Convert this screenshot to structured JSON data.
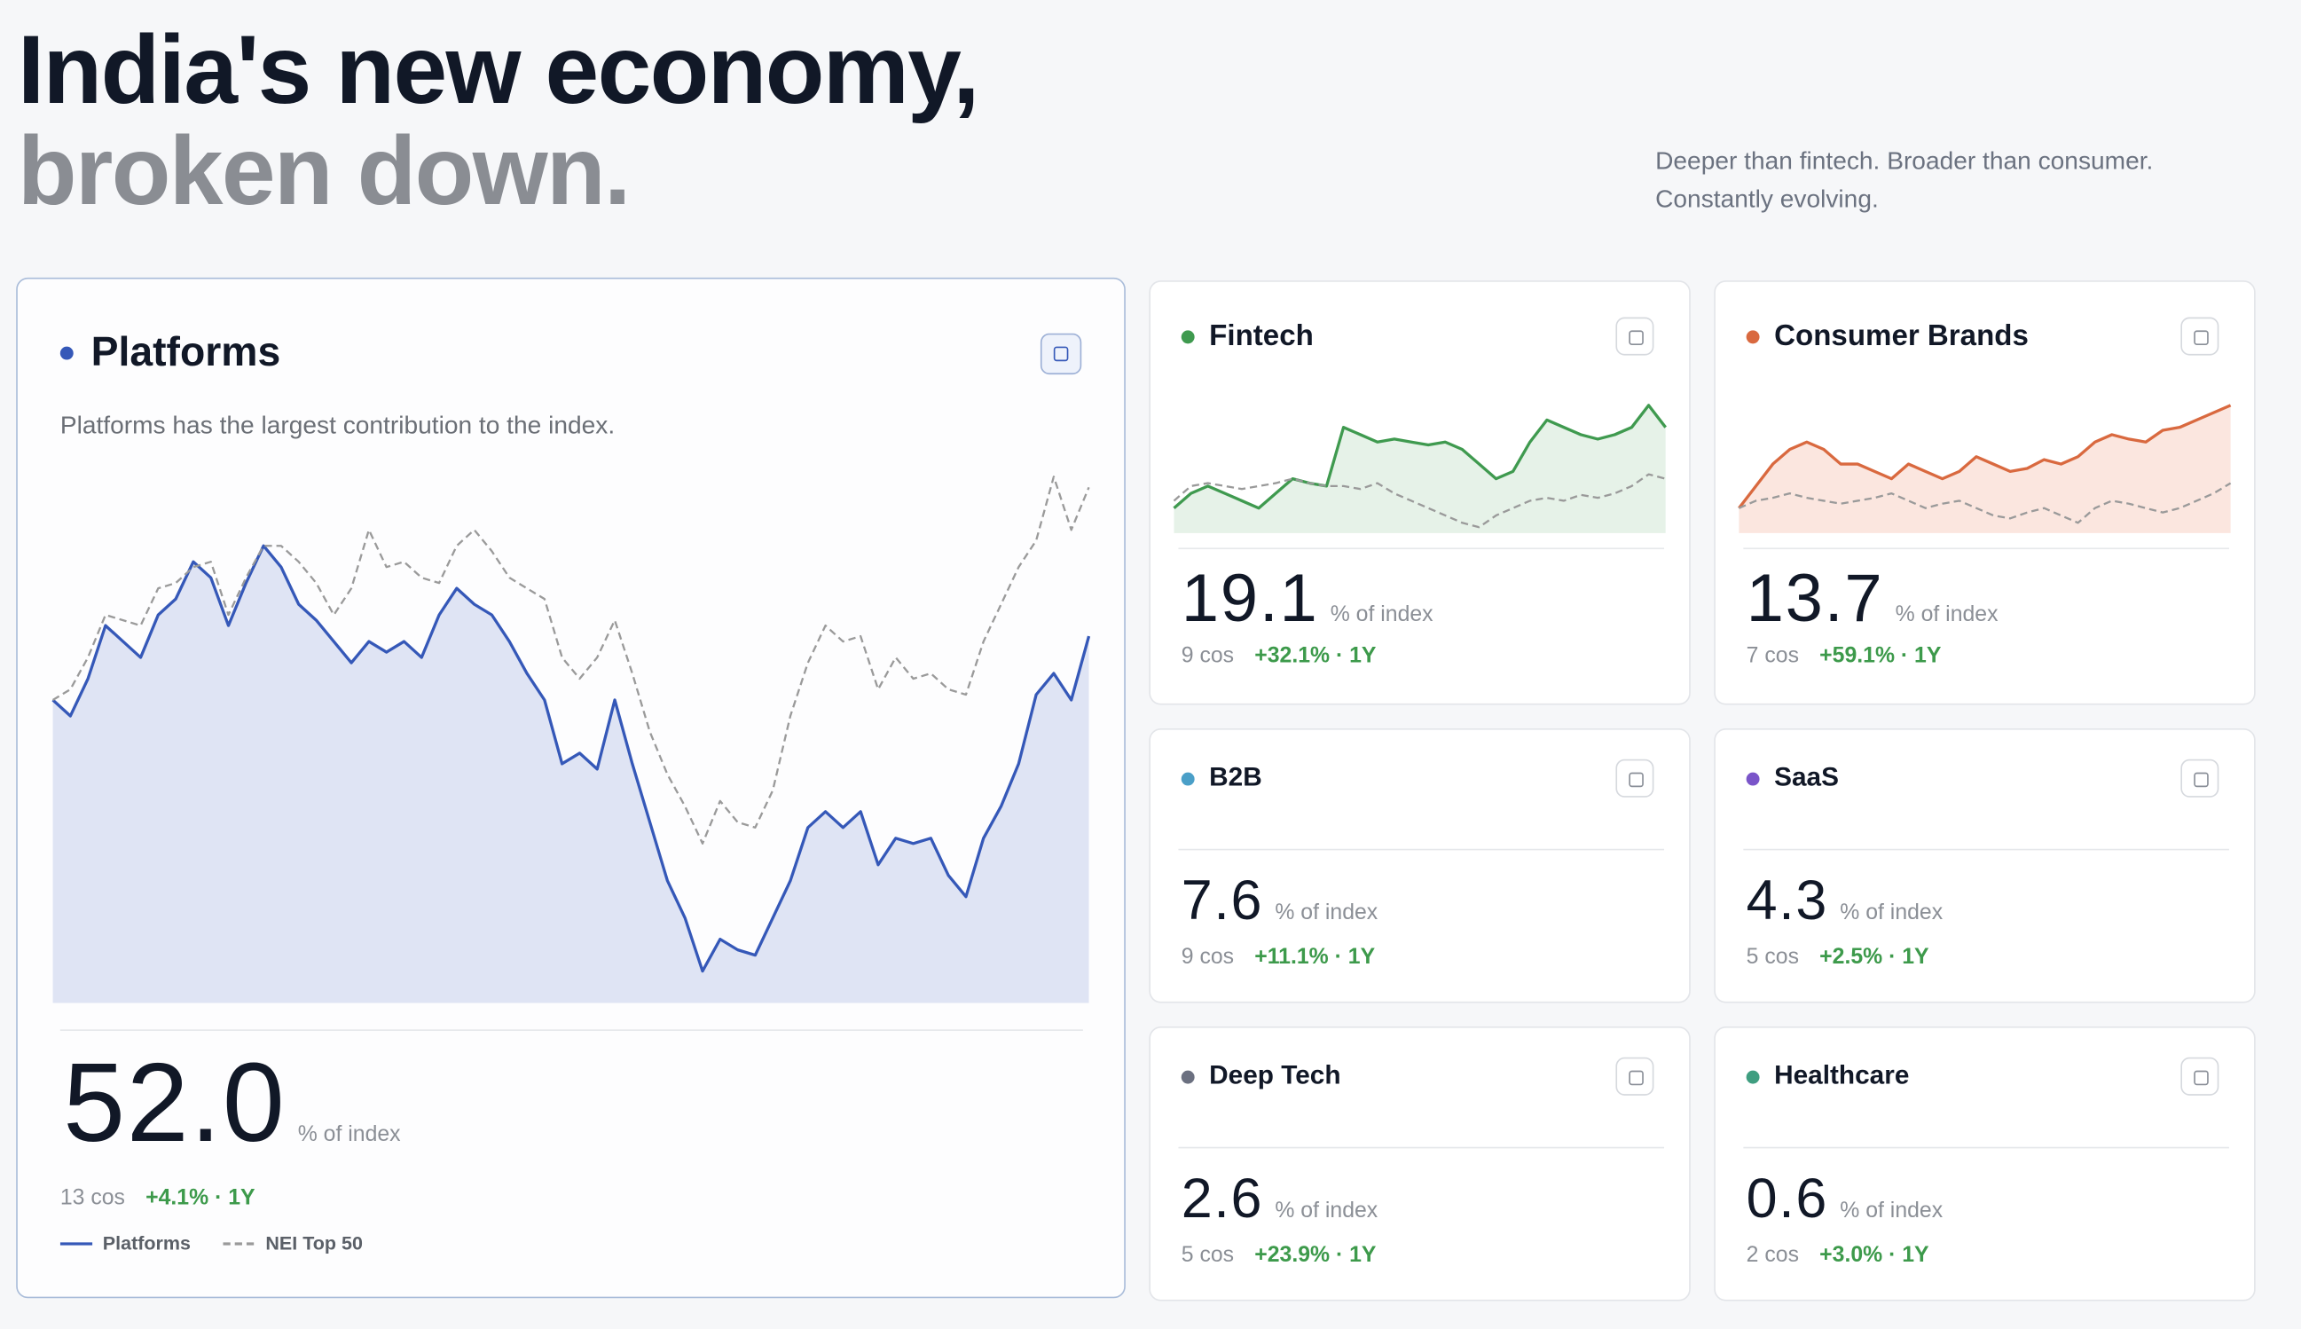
{
  "header": {
    "title_line1": "India's new economy,",
    "title_line2": "broken down.",
    "tagline_line1": "Deeper than fintech. Broader than consumer.",
    "tagline_line2": "Constantly evolving."
  },
  "cards": [
    {
      "name": "Platforms",
      "color": "#3558b8",
      "description": "Platforms has the largest contribution to the index.",
      "share": "52.0",
      "unit": "% of index",
      "count": "13 cos",
      "change": "+4.1% · 1Y",
      "chart_data": {
        "type": "line",
        "ylim": [
          0,
          100
        ],
        "series": [
          {
            "name": "Platforms",
            "color": "#3558b8",
            "area": "#dfe4f4",
            "dashed": false,
            "values": [
              57,
              54,
              61,
              71,
              68,
              65,
              73,
              76,
              83,
              80,
              71,
              79,
              86,
              82,
              75,
              72,
              68,
              64,
              68,
              66,
              68,
              65,
              73,
              78,
              75,
              73,
              68,
              62,
              57,
              45,
              47,
              44,
              57,
              45,
              34,
              23,
              16,
              6,
              12,
              10,
              9,
              16,
              23,
              33,
              36,
              33,
              36,
              26,
              31,
              30,
              31,
              24,
              20,
              31,
              37,
              45,
              58,
              62,
              57,
              69
            ]
          },
          {
            "name": "NEI Top 50",
            "color": "#9a9a9a",
            "dashed": true,
            "values": [
              57,
              59,
              65,
              73,
              72,
              71,
              78,
              79,
              82,
              83,
              73,
              80,
              86,
              86,
              83,
              79,
              73,
              78,
              89,
              82,
              83,
              80,
              79,
              86,
              89,
              85,
              80,
              78,
              76,
              65,
              61,
              65,
              72,
              62,
              51,
              43,
              37,
              30,
              38,
              34,
              33,
              40,
              54,
              64,
              71,
              68,
              69,
              59,
              65,
              61,
              62,
              59,
              58,
              68,
              75,
              82,
              87,
              99,
              89,
              97
            ]
          }
        ]
      }
    },
    {
      "name": "Fintech",
      "color": "#3f9a4f",
      "share": "19.1",
      "unit": "% of index",
      "count": "9 cos",
      "change": "+32.1% · 1Y",
      "chart_data": {
        "type": "line",
        "ylim": [
          0,
          100
        ],
        "series": [
          {
            "color": "#3f9a4f",
            "area": "#e6f2e8",
            "dashed": false,
            "values": [
              17,
              27,
              32,
              27,
              22,
              17,
              27,
              37,
              34,
              32,
              72,
              67,
              62,
              64,
              62,
              60,
              62,
              57,
              47,
              37,
              42,
              62,
              77,
              72,
              67,
              64,
              67,
              72,
              87,
              72
            ]
          },
          {
            "color": "#9a9a9a",
            "dashed": true,
            "values": [
              22,
              32,
              34,
              32,
              30,
              32,
              34,
              37,
              34,
              32,
              32,
              30,
              34,
              27,
              22,
              17,
              12,
              7,
              4,
              12,
              17,
              22,
              24,
              22,
              26,
              24,
              27,
              32,
              40,
              37
            ]
          }
        ]
      }
    },
    {
      "name": "Consumer Brands",
      "color": "#d9693f",
      "share": "13.7",
      "unit": "% of index",
      "count": "7 cos",
      "change": "+59.1% · 1Y",
      "chart_data": {
        "type": "line",
        "ylim": [
          0,
          100
        ],
        "series": [
          {
            "color": "#d9693f",
            "area": "#fbe6df",
            "dashed": false,
            "values": [
              17,
              32,
              47,
              57,
              62,
              57,
              47,
              47,
              42,
              37,
              47,
              42,
              37,
              42,
              52,
              47,
              42,
              44,
              50,
              47,
              52,
              62,
              67,
              64,
              62,
              70,
              72,
              77,
              82,
              87
            ]
          },
          {
            "color": "#9a9a9a",
            "dashed": true,
            "values": [
              17,
              22,
              24,
              27,
              24,
              22,
              20,
              22,
              24,
              27,
              22,
              17,
              20,
              22,
              17,
              12,
              10,
              14,
              17,
              12,
              7,
              17,
              22,
              20,
              17,
              14,
              17,
              22,
              27,
              34
            ]
          }
        ]
      }
    },
    {
      "name": "B2B",
      "color": "#4a9fc8",
      "share": "7.6",
      "unit": "% of index",
      "count": "9 cos",
      "change": "+11.1% · 1Y"
    },
    {
      "name": "SaaS",
      "color": "#7a55c9",
      "share": "4.3",
      "unit": "% of index",
      "count": "5 cos",
      "change": "+2.5% · 1Y"
    },
    {
      "name": "Deep Tech",
      "color": "#6b7080",
      "share": "2.6",
      "unit": "% of index",
      "count": "5 cos",
      "change": "+23.9% · 1Y"
    },
    {
      "name": "Healthcare",
      "color": "#3f9e80",
      "share": "0.6",
      "unit": "% of index",
      "count": "2 cos",
      "change": "+3.0% · 1Y"
    }
  ]
}
